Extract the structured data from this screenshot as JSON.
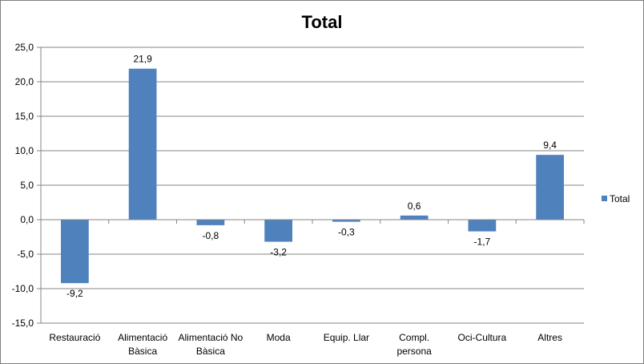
{
  "chart_data": {
    "type": "bar",
    "title": "Total",
    "xlabel": "",
    "ylabel": "",
    "categories": [
      [
        "Restauració"
      ],
      [
        "Alimentació",
        "Bàsica"
      ],
      [
        "Alimentació No",
        "Bàsica"
      ],
      [
        "Moda"
      ],
      [
        "Equip. Llar"
      ],
      [
        "Compl.",
        "persona"
      ],
      [
        "Oci-Cultura"
      ],
      [
        "Altres"
      ]
    ],
    "series": [
      {
        "name": "Total",
        "values": [
          -9.2,
          21.9,
          -0.8,
          -3.2,
          -0.3,
          0.6,
          -1.7,
          9.4
        ],
        "labels": [
          "-9,2",
          "21,9",
          "-0,8",
          "-3,2",
          "-0,3",
          "0,6",
          "-1,7",
          "9,4"
        ],
        "color": "#4f81bd"
      }
    ],
    "ylim": [
      -15,
      25
    ],
    "yticks": [
      25,
      20,
      15,
      10,
      5,
      0,
      -5,
      -10,
      -15
    ],
    "ytick_labels": [
      "25,0",
      "20,0",
      "15,0",
      "10,0",
      "5,0",
      "0,0",
      "-5,0",
      "-10,0",
      "-15,0"
    ],
    "grid": true,
    "legend": "right"
  }
}
